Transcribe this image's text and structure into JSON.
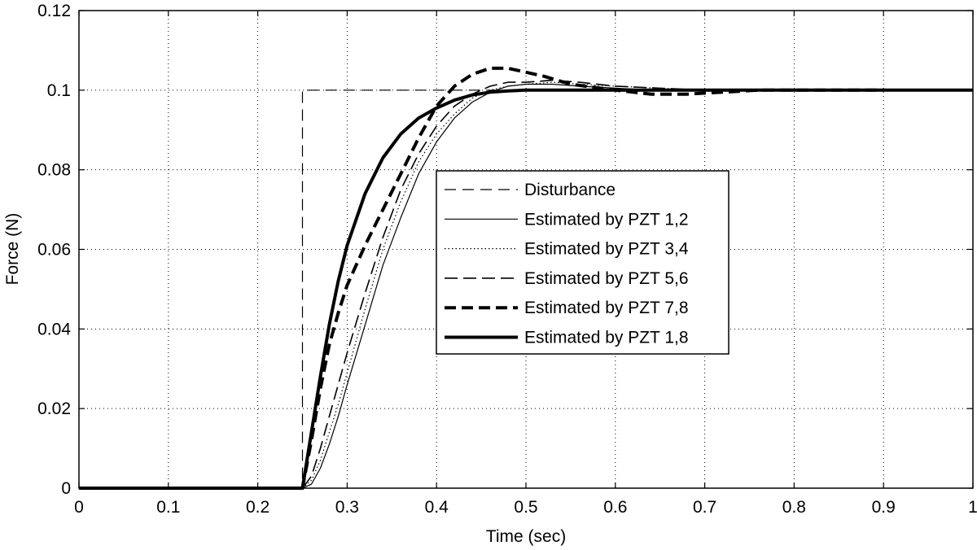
{
  "chart_data": {
    "type": "line",
    "title": "",
    "xlabel": "Time (sec)",
    "ylabel": "Force (N)",
    "xlim": [
      0,
      1
    ],
    "ylim": [
      0,
      0.12
    ],
    "x_ticks": [
      0,
      0.1,
      0.2,
      0.3,
      0.4,
      0.5,
      0.6,
      0.7,
      0.8,
      0.9,
      1
    ],
    "x_tick_labels": [
      "0",
      "0.1",
      "0.2",
      "0.3",
      "0.4",
      "0.5",
      "0.6",
      "0.7",
      "0.8",
      "0.9",
      "1"
    ],
    "y_ticks": [
      0,
      0.02,
      0.04,
      0.06,
      0.08,
      0.1,
      0.12
    ],
    "y_tick_labels": [
      "0",
      "0.02",
      "0.04",
      "0.06",
      "0.08",
      "0.1",
      "0.12"
    ],
    "grid": true,
    "legend_position": "center",
    "series": [
      {
        "name": "Disturbance",
        "style": "dashed-thin",
        "x": [
          0,
          0.25,
          0.25,
          1
        ],
        "y": [
          0,
          0,
          0.1,
          0.1
        ]
      },
      {
        "name": "Estimated by PZT 1,2",
        "style": "solid-thin",
        "x": [
          0,
          0.25,
          0.26,
          0.27,
          0.28,
          0.29,
          0.3,
          0.32,
          0.34,
          0.36,
          0.38,
          0.4,
          0.42,
          0.44,
          0.46,
          0.48,
          0.5,
          0.53,
          0.56,
          0.6,
          0.65,
          0.7,
          0.8,
          0.92
        ],
        "y": [
          0,
          0,
          0.001,
          0.005,
          0.011,
          0.018,
          0.026,
          0.041,
          0.056,
          0.068,
          0.079,
          0.087,
          0.093,
          0.097,
          0.0995,
          0.101,
          0.1015,
          0.1015,
          0.101,
          0.1005,
          0.1,
          0.1,
          0.1,
          0.1
        ]
      },
      {
        "name": "Estimated by PZT 3,4",
        "style": "dotted",
        "x": [
          0,
          0.25,
          0.26,
          0.27,
          0.28,
          0.29,
          0.3,
          0.32,
          0.34,
          0.36,
          0.38,
          0.4,
          0.42,
          0.44,
          0.46,
          0.48,
          0.5,
          0.53,
          0.56,
          0.6,
          0.65,
          0.7,
          0.8,
          0.9
        ],
        "y": [
          0,
          0,
          0.002,
          0.007,
          0.014,
          0.021,
          0.029,
          0.045,
          0.06,
          0.072,
          0.082,
          0.089,
          0.094,
          0.098,
          0.1,
          0.101,
          0.1015,
          0.102,
          0.1015,
          0.101,
          0.1005,
          0.1,
          0.1,
          0.1
        ]
      },
      {
        "name": "Estimated by PZT 5,6",
        "style": "dashed-medium",
        "x": [
          0,
          0.25,
          0.26,
          0.27,
          0.28,
          0.29,
          0.3,
          0.32,
          0.34,
          0.36,
          0.38,
          0.4,
          0.42,
          0.44,
          0.46,
          0.48,
          0.5,
          0.53,
          0.56,
          0.6,
          0.65,
          0.7,
          0.8,
          0.9
        ],
        "y": [
          0,
          0,
          0.003,
          0.01,
          0.018,
          0.026,
          0.034,
          0.049,
          0.063,
          0.075,
          0.084,
          0.091,
          0.096,
          0.099,
          0.101,
          0.102,
          0.102,
          0.1025,
          0.102,
          0.101,
          0.1005,
          0.1,
          0.1,
          0.1
        ]
      },
      {
        "name": "Estimated by PZT 7,8",
        "style": "dashed-thick",
        "x": [
          0,
          0.25,
          0.26,
          0.27,
          0.28,
          0.29,
          0.3,
          0.32,
          0.34,
          0.36,
          0.38,
          0.4,
          0.42,
          0.44,
          0.46,
          0.48,
          0.5,
          0.52,
          0.55,
          0.6,
          0.64,
          0.68,
          0.72,
          0.76,
          0.8,
          0.9
        ],
        "y": [
          0,
          0,
          0.012,
          0.025,
          0.036,
          0.044,
          0.051,
          0.061,
          0.07,
          0.079,
          0.088,
          0.096,
          0.101,
          0.104,
          0.1055,
          0.1055,
          0.1045,
          0.1035,
          0.1015,
          0.1,
          0.099,
          0.099,
          0.0995,
          0.1,
          0.1,
          0.1
        ]
      },
      {
        "name": "Estimated by PZT 1,8",
        "style": "solid-thick",
        "x": [
          0,
          0.25,
          0.26,
          0.27,
          0.28,
          0.29,
          0.3,
          0.32,
          0.34,
          0.36,
          0.38,
          0.4,
          0.42,
          0.44,
          0.46,
          0.48,
          0.5,
          0.55,
          0.6,
          0.7,
          0.8,
          0.9,
          1.0
        ],
        "y": [
          0,
          0,
          0.014,
          0.028,
          0.041,
          0.052,
          0.061,
          0.074,
          0.083,
          0.089,
          0.093,
          0.0955,
          0.0975,
          0.0988,
          0.0995,
          0.0998,
          0.1,
          0.1,
          0.1,
          0.1,
          0.1,
          0.1,
          0.1
        ]
      }
    ]
  }
}
